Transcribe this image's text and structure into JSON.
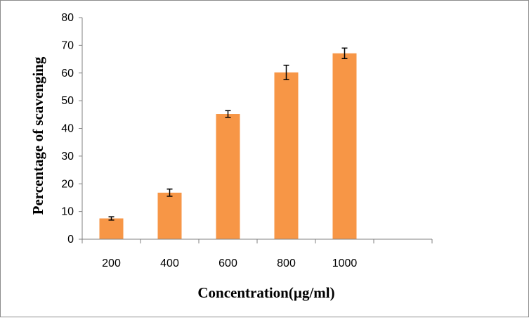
{
  "chart_data": {
    "type": "bar",
    "categories": [
      "200",
      "400",
      "600",
      "800",
      "1000",
      ""
    ],
    "values": [
      7.5,
      16.8,
      45.2,
      60.2,
      67.1,
      null
    ],
    "errors": [
      0.6,
      1.3,
      1.2,
      2.6,
      1.9,
      null
    ],
    "xlabel": "Concentration(µg/ml)",
    "ylabel": "Percentage of scavenging",
    "ylim": [
      0,
      80
    ],
    "yticks": [
      "0",
      "10",
      "20",
      "30",
      "40",
      "50",
      "60",
      "70",
      "80"
    ],
    "grid": false,
    "legend": "none",
    "bar_color": "#f79646"
  }
}
